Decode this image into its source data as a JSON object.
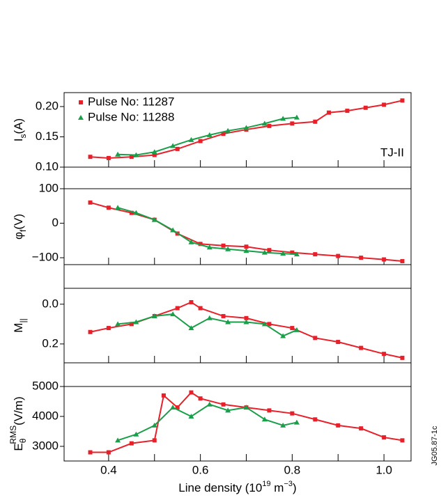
{
  "chart_data": [
    {
      "type": "scatter",
      "ylabel": {
        "main": "I",
        "sub": "s",
        "unit": "(A)"
      },
      "ylim": [
        0.1,
        0.223
      ],
      "yticks": [
        {
          "value": 0.1,
          "label": "0.10"
        },
        {
          "value": 0.15,
          "label": "0.15"
        },
        {
          "value": 0.2,
          "label": "0.20"
        }
      ],
      "annotation": "TJ-II",
      "series": [
        {
          "name": "Pulse No: 11287",
          "color": "#e8202a",
          "marker": "square",
          "x": [
            0.36,
            0.4,
            0.45,
            0.5,
            0.55,
            0.6,
            0.65,
            0.7,
            0.75,
            0.8,
            0.85,
            0.88,
            0.92,
            0.96,
            1.0,
            1.04
          ],
          "values": [
            0.117,
            0.115,
            0.117,
            0.12,
            0.13,
            0.143,
            0.155,
            0.162,
            0.168,
            0.172,
            0.175,
            0.19,
            0.193,
            0.198,
            0.203,
            0.21
          ]
        },
        {
          "name": "Pulse No: 11288",
          "color": "#1a9e4a",
          "marker": "triangle",
          "x": [
            0.42,
            0.46,
            0.5,
            0.54,
            0.58,
            0.62,
            0.66,
            0.7,
            0.74,
            0.78,
            0.81
          ],
          "values": [
            0.121,
            0.12,
            0.125,
            0.135,
            0.145,
            0.153,
            0.16,
            0.165,
            0.172,
            0.18,
            0.182
          ]
        }
      ]
    },
    {
      "type": "scatter",
      "ylabel": {
        "main": "φ",
        "sub": "f",
        "unit": "(V)"
      },
      "ylim": [
        -120,
        100
      ],
      "yticks": [
        {
          "value": -100,
          "label": "−100"
        },
        0,
        100
      ],
      "series": [
        {
          "color": "#e8202a",
          "marker": "square",
          "x": [
            0.36,
            0.4,
            0.45,
            0.5,
            0.55,
            0.6,
            0.65,
            0.7,
            0.75,
            0.8,
            0.85,
            0.9,
            0.95,
            1.0,
            1.04
          ],
          "values": [
            60,
            45,
            30,
            10,
            -30,
            -60,
            -65,
            -68,
            -78,
            -85,
            -90,
            -95,
            -100,
            -105,
            -110
          ]
        },
        {
          "color": "#1a9e4a",
          "marker": "triangle",
          "x": [
            0.42,
            0.46,
            0.5,
            0.54,
            0.58,
            0.62,
            0.66,
            0.7,
            0.74,
            0.78,
            0.81
          ],
          "values": [
            45,
            30,
            10,
            -20,
            -55,
            -70,
            -75,
            -80,
            -85,
            -88,
            -90
          ]
        }
      ]
    },
    {
      "type": "scatter",
      "ylabel": {
        "main": "M",
        "sub": "||"
      },
      "ylim": [
        0.295,
        -0.08
      ],
      "yticks": [
        {
          "value": 0,
          "label": "0.0"
        },
        0.2
      ],
      "series": [
        {
          "color": "#e8202a",
          "marker": "square",
          "x": [
            0.36,
            0.4,
            0.45,
            0.5,
            0.55,
            0.58,
            0.6,
            0.65,
            0.7,
            0.75,
            0.8,
            0.85,
            0.9,
            0.95,
            1.0,
            1.04
          ],
          "values": [
            0.14,
            0.12,
            0.1,
            0.06,
            0.02,
            -0.01,
            0.02,
            0.06,
            0.07,
            0.1,
            0.12,
            0.17,
            0.19,
            0.22,
            0.25,
            0.27
          ]
        },
        {
          "color": "#1a9e4a",
          "marker": "triangle",
          "x": [
            0.42,
            0.46,
            0.5,
            0.54,
            0.58,
            0.62,
            0.66,
            0.7,
            0.74,
            0.78,
            0.81
          ],
          "values": [
            0.1,
            0.09,
            0.06,
            0.05,
            0.12,
            0.07,
            0.09,
            0.09,
            0.1,
            0.16,
            0.13
          ]
        }
      ]
    },
    {
      "type": "scatter",
      "ylabel": {
        "main": "E",
        "sub": "θ",
        "sup": "RMS",
        "unit": "(V/m)"
      },
      "ylim": [
        2510,
        5000
      ],
      "yticks": [
        3000,
        4000,
        5000
      ],
      "xlim": [
        0.303,
        1.059
      ],
      "xticks": [
        0.4,
        0.6,
        0.8,
        {
          "value": 1.0,
          "label": "1.0"
        }
      ],
      "xminor_ticks": [
        0.5,
        0.7,
        0.9
      ],
      "xlabel": {
        "main": "Line density (10",
        "exp": "19",
        "mid": " m",
        "exp2": "−3",
        "end": ")"
      },
      "series": [
        {
          "color": "#e8202a",
          "marker": "square",
          "x": [
            0.36,
            0.4,
            0.45,
            0.5,
            0.52,
            0.55,
            0.58,
            0.6,
            0.65,
            0.7,
            0.75,
            0.8,
            0.85,
            0.9,
            0.95,
            1.0,
            1.04
          ],
          "values": [
            2800,
            2800,
            3100,
            3200,
            4700,
            4300,
            4800,
            4600,
            4400,
            4300,
            4200,
            4100,
            3900,
            3700,
            3600,
            3300,
            3200
          ]
        },
        {
          "color": "#1a9e4a",
          "marker": "triangle",
          "x": [
            0.42,
            0.46,
            0.5,
            0.54,
            0.58,
            0.62,
            0.66,
            0.7,
            0.74,
            0.78,
            0.81
          ],
          "values": [
            3200,
            3400,
            3700,
            4300,
            4000,
            4400,
            4200,
            4300,
            3900,
            3700,
            3800
          ]
        }
      ]
    }
  ],
  "figure_id": "JG05.87-1c"
}
